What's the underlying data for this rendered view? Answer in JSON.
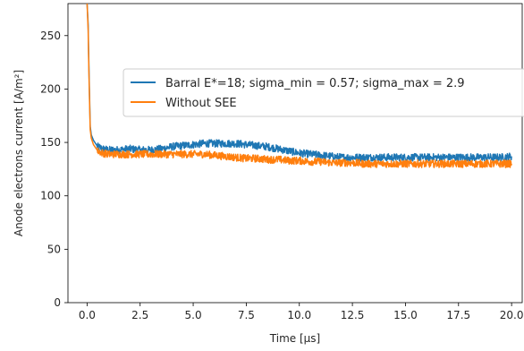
{
  "chart_data": {
    "type": "line",
    "xlabel": "Time [μs]",
    "ylabel": "Anode electrons current [A/m²]",
    "xlim": [
      -0.9,
      20.5
    ],
    "ylim": [
      0,
      280
    ],
    "x_ticks": [
      0.0,
      2.5,
      5.0,
      7.5,
      10.0,
      12.5,
      15.0,
      17.5,
      20.0
    ],
    "x_tick_labels": [
      "0.0",
      "2.5",
      "5.0",
      "7.5",
      "10.0",
      "12.5",
      "15.0",
      "17.5",
      "20.0"
    ],
    "y_ticks": [
      0,
      50,
      100,
      150,
      200,
      250
    ],
    "y_tick_labels": [
      "0",
      "50",
      "100",
      "150",
      "200",
      "250"
    ],
    "grid": false,
    "legend_position": "upper-right",
    "series": [
      {
        "name": "Barral E*=18; sigma_min = 0.57; sigma_max = 2.9",
        "color": "#1f77b4",
        "x": [
          0.0,
          0.05,
          0.1,
          0.15,
          0.2,
          0.3,
          0.4,
          0.5,
          0.75,
          1.0,
          1.5,
          2.0,
          2.5,
          3.0,
          3.5,
          4.0,
          4.5,
          5.0,
          5.5,
          6.0,
          6.5,
          7.0,
          7.5,
          8.0,
          8.5,
          9.0,
          9.5,
          10.0,
          10.5,
          11.0,
          11.5,
          12.0,
          12.5,
          13.0,
          13.5,
          14.0,
          14.5,
          15.0,
          15.5,
          16.0,
          16.5,
          17.0,
          17.5,
          18.0,
          18.5,
          19.0,
          19.5,
          20.0
        ],
        "y": [
          280,
          260,
          210,
          165,
          157,
          152,
          149,
          146,
          144,
          143,
          143,
          144,
          143,
          143,
          144,
          146,
          147,
          148,
          149,
          149,
          149,
          149,
          148,
          147,
          146,
          144,
          142,
          140,
          139,
          138,
          137,
          136,
          136,
          136,
          136,
          136,
          136,
          136,
          136,
          136,
          136,
          136,
          136,
          136,
          136,
          136,
          136,
          137
        ],
        "noise_amplitude": 3.5
      },
      {
        "name": "Without SEE",
        "color": "#ff7f0e",
        "x": [
          0.0,
          0.05,
          0.1,
          0.15,
          0.2,
          0.3,
          0.4,
          0.5,
          0.75,
          1.0,
          1.5,
          2.0,
          2.5,
          3.0,
          3.5,
          4.0,
          4.5,
          5.0,
          5.5,
          6.0,
          6.5,
          7.0,
          7.5,
          8.0,
          8.5,
          9.0,
          9.5,
          10.0,
          10.5,
          11.0,
          11.5,
          12.0,
          12.5,
          13.0,
          13.5,
          14.0,
          14.5,
          15.0,
          15.5,
          16.0,
          16.5,
          17.0,
          17.5,
          18.0,
          18.5,
          19.0,
          19.5,
          20.0
        ],
        "y": [
          280,
          255,
          205,
          162,
          154,
          148,
          145,
          142,
          140,
          139,
          139,
          139,
          139,
          139,
          139,
          139,
          139,
          139,
          139,
          138,
          137,
          136,
          135,
          135,
          134,
          134,
          133,
          133,
          132,
          132,
          131,
          131,
          131,
          130,
          130,
          130,
          130,
          130,
          130,
          130,
          130,
          130,
          130,
          130,
          130,
          130,
          130,
          130
        ],
        "noise_amplitude": 3.5
      }
    ]
  }
}
